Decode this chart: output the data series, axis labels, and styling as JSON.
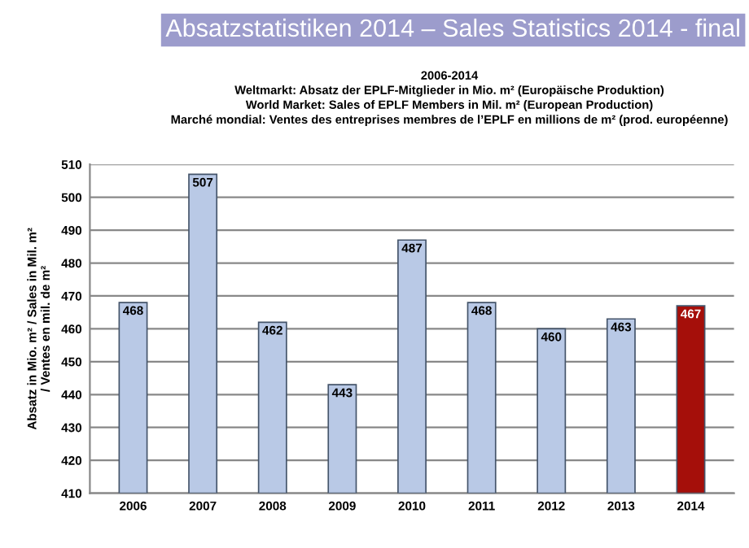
{
  "chart_data": {
    "type": "bar",
    "title": "Absatzstatistiken 2014 – Sales Statistics 2014 - final",
    "subtitle": "2006-2014\nWeltmarkt: Absatz der EPLF-Mitglieder in Mio. m² (Europäische Produktion)\nWorld Market: Sales of EPLF Members in Mil. m² (European Production)\nMarché mondial: Ventes des entreprises membres de l’EPLF en millions de m² (prod. européenne)",
    "ylabel": "Absatz in Mio. m² / Sales in Mil. m²\n/ Ventes en mil. de m²",
    "categories": [
      "2006",
      "2007",
      "2008",
      "2009",
      "2010",
      "2011",
      "2012",
      "2013",
      "2014"
    ],
    "values": [
      468,
      507,
      462,
      443,
      487,
      468,
      460,
      463,
      467
    ],
    "colors": [
      "#b9c9e6",
      "#b9c9e6",
      "#b9c9e6",
      "#b9c9e6",
      "#b9c9e6",
      "#b9c9e6",
      "#b9c9e6",
      "#b9c9e6",
      "#a50f0a"
    ],
    "ylim": [
      410,
      510
    ],
    "yticks": [
      410,
      420,
      430,
      440,
      450,
      460,
      470,
      480,
      490,
      500,
      510
    ],
    "grid": "y",
    "data_labels": true,
    "legend": false
  }
}
